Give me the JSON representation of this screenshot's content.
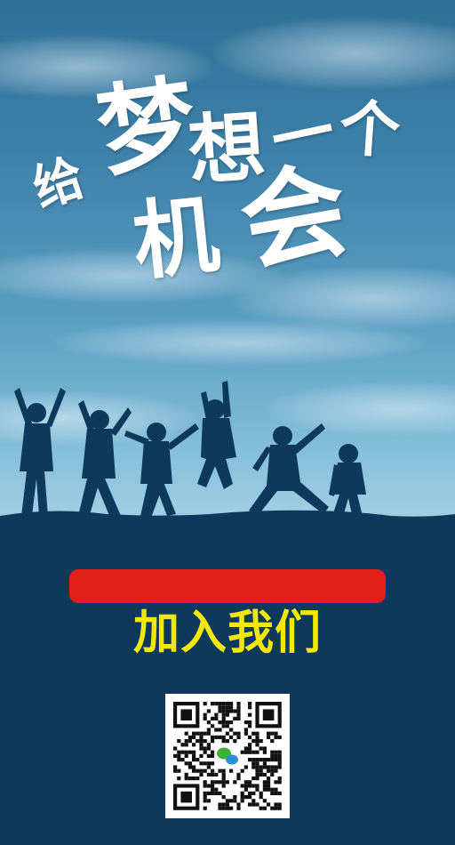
{
  "headline": {
    "chars": [
      "给",
      "梦",
      "想",
      "一",
      "个",
      "机",
      "会"
    ]
  },
  "cta": {
    "label": "加入我们"
  },
  "qr": {
    "icon": "wechat-icon"
  },
  "colors": {
    "sky_top": "#2f6f96",
    "sky_bottom": "#a7d3e6",
    "band": "#0d3a5c",
    "red_bar": "#e21f1a",
    "cta_text": "#f5e800",
    "headline_text": "#ffffff"
  }
}
